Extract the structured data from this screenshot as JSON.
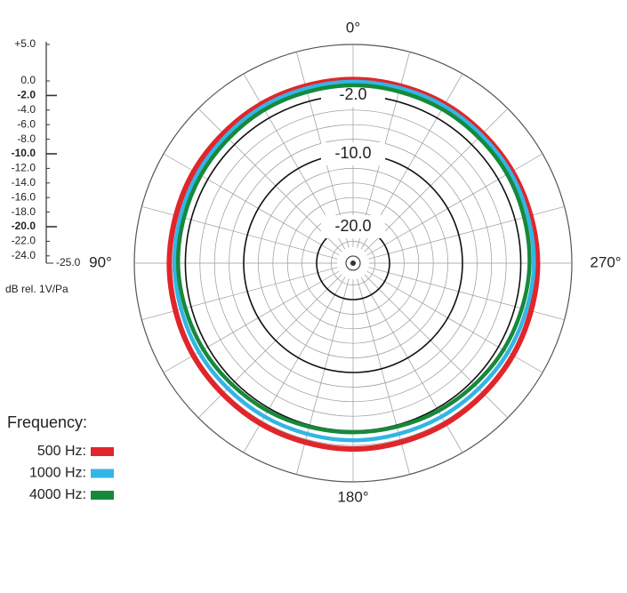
{
  "chart_data": {
    "type": "polar",
    "rlim": [
      -25,
      5
    ],
    "rticks": [
      {
        "value": 5,
        "label": "+5.0"
      },
      {
        "value": 0,
        "label": "0.0"
      },
      {
        "value": -2,
        "label": "-2.0"
      },
      {
        "value": -4,
        "label": "-4.0"
      },
      {
        "value": -6,
        "label": "-6.0"
      },
      {
        "value": -8,
        "label": "-8.0"
      },
      {
        "value": -10,
        "label": "-10.0"
      },
      {
        "value": -12,
        "label": "-12.0"
      },
      {
        "value": -14,
        "label": "-14.0"
      },
      {
        "value": -16,
        "label": "-16.0"
      },
      {
        "value": -18,
        "label": "-18.0"
      },
      {
        "value": -20,
        "label": "-20.0"
      },
      {
        "value": -22,
        "label": "-22.0"
      },
      {
        "value": -24,
        "label": "-24.0"
      },
      {
        "value": -25,
        "label": "-25.0"
      }
    ],
    "bold_ticks": [
      -2,
      -10,
      -20
    ],
    "rlabel": "dB rel. 1V/Pa",
    "ring_labels": [
      {
        "value": -2,
        "label": "-2.0"
      },
      {
        "value": -10,
        "label": "-10.0"
      },
      {
        "value": -20,
        "label": "-20.0"
      }
    ],
    "angle_labels": [
      {
        "value": 0,
        "label": "0°"
      },
      {
        "value": 90,
        "label": "90°"
      },
      {
        "value": 180,
        "label": "180°"
      },
      {
        "value": 270,
        "label": "270°"
      }
    ],
    "legend_title": "Frequency:",
    "angles": [
      0,
      30,
      60,
      90,
      120,
      150,
      180,
      210,
      240,
      270,
      300,
      330
    ],
    "series": [
      {
        "name": "500 Hz:",
        "color": "#e0262b",
        "values": [
          0.2,
          0.2,
          0.2,
          0.2,
          0.3,
          0.4,
          0.5,
          0.4,
          0.3,
          0.3,
          0.2,
          0.2
        ]
      },
      {
        "name": "1000 Hz:",
        "color": "#33b5e5",
        "values": [
          -0.1,
          -0.2,
          -0.4,
          -0.5,
          -0.6,
          -0.7,
          -0.7,
          -0.7,
          -0.5,
          -0.2,
          -0.1,
          -0.1
        ]
      },
      {
        "name": "4000 Hz:",
        "color": "#16893b",
        "values": [
          -0.6,
          -0.7,
          -0.9,
          -1.0,
          -1.3,
          -1.6,
          -1.8,
          -1.6,
          -1.2,
          -0.8,
          -0.6,
          -0.6
        ]
      }
    ]
  }
}
